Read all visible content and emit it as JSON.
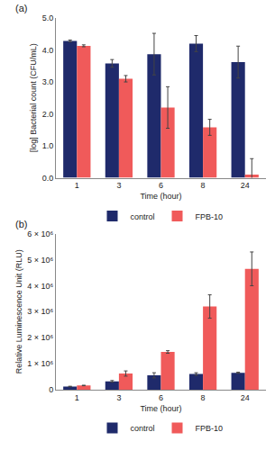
{
  "chart_data": [
    {
      "type": "bar",
      "title": "(a)",
      "x_label": "Time (hour)",
      "y_label": "[log] Bacterial count (CFU/mL)",
      "categories": [
        "1",
        "3",
        "6",
        "8",
        "24"
      ],
      "series": [
        {
          "name": "control",
          "color": "#1f2a6b",
          "values": [
            4.28,
            3.58,
            3.87,
            4.2,
            3.62
          ],
          "errors": [
            0.03,
            0.12,
            0.65,
            0.25,
            0.5
          ]
        },
        {
          "name": "FPB-10",
          "color": "#f05a5a",
          "values": [
            4.13,
            3.1,
            2.2,
            1.58,
            0.1
          ],
          "errors": [
            0.03,
            0.1,
            0.65,
            0.25,
            0.5
          ]
        }
      ],
      "ylim": [
        0,
        5
      ],
      "yticks": [
        {
          "value": 0,
          "label": "0.0"
        },
        {
          "value": 1,
          "label": "1.0"
        },
        {
          "value": 2,
          "label": "2.0"
        },
        {
          "value": 3,
          "label": "3.0"
        },
        {
          "value": 4,
          "label": "4.0"
        },
        {
          "value": 5,
          "label": "5.0"
        }
      ],
      "grid": false,
      "legend": "bottom"
    },
    {
      "type": "bar",
      "title": "(b)",
      "x_label": "Time (hour)",
      "y_label": "Relative Luminescence Unit (RLU)",
      "categories": [
        "1",
        "3",
        "6",
        "8",
        "24"
      ],
      "series": [
        {
          "name": "control",
          "color": "#1f2a6b",
          "values": [
            120000,
            320000,
            550000,
            600000,
            650000
          ],
          "errors": [
            10000,
            30000,
            100000,
            50000,
            20000
          ]
        },
        {
          "name": "FPB-10",
          "color": "#f05a5a",
          "values": [
            160000,
            620000,
            1450000,
            3200000,
            4650000
          ],
          "errors": [
            10000,
            100000,
            50000,
            450000,
            650000
          ]
        }
      ],
      "ylim": [
        0,
        6000000
      ],
      "yticks": [
        0,
        {
          "value": 1000000,
          "label": "1 × 10⁶"
        },
        {
          "value": 2000000,
          "label": "2 × 10⁶"
        },
        {
          "value": 3000000,
          "label": "3 × 10⁶"
        },
        {
          "value": 4000000,
          "label": "4 × 10⁶"
        },
        {
          "value": 5000000,
          "label": "5 × 10⁶"
        },
        {
          "value": 6000000,
          "label": "6 × 10⁶"
        }
      ],
      "grid": false,
      "legend": "bottom"
    }
  ]
}
